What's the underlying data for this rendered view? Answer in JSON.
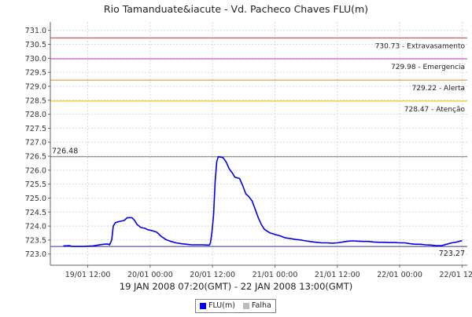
{
  "chart_data": {
    "type": "line",
    "title": "Rio Tamanduate&iacute - Vd. Pacheco Chaves FLU(m)",
    "xlabel": "19 JAN 2008 07:20(GMT) - 22 JAN 2008 13:00(GMT)",
    "ylabel": "",
    "x_unit": "hours since 19/01 00:00 GMT",
    "xlim": [
      4.8,
      85.0
    ],
    "ylim": [
      722.6,
      731.3
    ],
    "grid": true,
    "y_ticks": [
      "723.0",
      "723.5",
      "724.0",
      "724.5",
      "725.0",
      "725.5",
      "726.0",
      "726.5",
      "727.0",
      "727.5",
      "728.0",
      "728.5",
      "729.0",
      "729.5",
      "730.0",
      "730.5",
      "731.0"
    ],
    "x_ticks": [
      {
        "x": 12,
        "label": "19/01 12:00"
      },
      {
        "x": 24,
        "label": "20/01 00:00"
      },
      {
        "x": 36,
        "label": "20/01 12:00"
      },
      {
        "x": 48,
        "label": "21/01 00:00"
      },
      {
        "x": 60,
        "label": "21/01 12:00"
      },
      {
        "x": 72,
        "label": "22/01 00:00"
      },
      {
        "x": 84,
        "label": "22/01 12:00"
      }
    ],
    "thresholds": [
      {
        "value": 730.73,
        "label": "730.73 - Extravasamento",
        "color": "#cc3333"
      },
      {
        "value": 729.98,
        "label": "729.98 - Emergencia",
        "color": "#cc33cc"
      },
      {
        "value": 729.22,
        "label": "729.22 - Alerta",
        "color": "#e08a2a"
      },
      {
        "value": 728.47,
        "label": "728.47 - Atenção",
        "color": "#e6c200"
      }
    ],
    "max_marker": {
      "value": 726.48,
      "label": "726.48",
      "color": "#777777"
    },
    "min_marker": {
      "value": 723.27,
      "label": "723.27",
      "color": "#333399"
    },
    "series": [
      {
        "name": "FLU(m)",
        "color": "#0000ee",
        "points": [
          [
            7.3,
            723.29
          ],
          [
            8.5,
            723.3
          ],
          [
            9.0,
            723.27
          ],
          [
            11.0,
            723.27
          ],
          [
            12.0,
            723.28
          ],
          [
            13.0,
            723.29
          ],
          [
            14.0,
            723.32
          ],
          [
            15.0,
            723.35
          ],
          [
            15.8,
            723.36
          ],
          [
            16.2,
            723.33
          ],
          [
            16.6,
            723.5
          ],
          [
            16.9,
            724.0
          ],
          [
            17.3,
            724.12
          ],
          [
            18.0,
            724.16
          ],
          [
            19.0,
            724.2
          ],
          [
            19.6,
            724.3
          ],
          [
            20.5,
            724.3
          ],
          [
            21.0,
            724.2
          ],
          [
            21.5,
            724.05
          ],
          [
            22.2,
            723.95
          ],
          [
            23.0,
            723.92
          ],
          [
            23.5,
            723.87
          ],
          [
            24.5,
            723.83
          ],
          [
            25.3,
            723.78
          ],
          [
            26.0,
            723.65
          ],
          [
            27.0,
            723.52
          ],
          [
            28.0,
            723.45
          ],
          [
            29.0,
            723.4
          ],
          [
            30.0,
            723.37
          ],
          [
            31.0,
            723.35
          ],
          [
            32.0,
            723.33
          ],
          [
            33.0,
            723.33
          ],
          [
            34.0,
            723.33
          ],
          [
            35.0,
            723.32
          ],
          [
            35.4,
            723.32
          ],
          [
            35.6,
            723.4
          ],
          [
            35.9,
            723.8
          ],
          [
            36.2,
            724.4
          ],
          [
            36.5,
            725.6
          ],
          [
            36.8,
            726.3
          ],
          [
            37.1,
            726.48
          ],
          [
            38.0,
            726.45
          ],
          [
            38.6,
            726.3
          ],
          [
            39.2,
            726.05
          ],
          [
            39.8,
            725.9
          ],
          [
            40.3,
            725.75
          ],
          [
            41.2,
            725.7
          ],
          [
            41.8,
            725.45
          ],
          [
            42.4,
            725.15
          ],
          [
            43.0,
            725.05
          ],
          [
            43.6,
            724.9
          ],
          [
            44.2,
            724.6
          ],
          [
            44.8,
            724.3
          ],
          [
            45.4,
            724.05
          ],
          [
            46.0,
            723.88
          ],
          [
            47.0,
            723.76
          ],
          [
            48.0,
            723.7
          ],
          [
            49.0,
            723.65
          ],
          [
            50.0,
            723.58
          ],
          [
            51.0,
            723.55
          ],
          [
            52.0,
            723.52
          ],
          [
            53.0,
            723.5
          ],
          [
            54.0,
            723.47
          ],
          [
            55.0,
            723.44
          ],
          [
            56.0,
            723.42
          ],
          [
            57.0,
            723.4
          ],
          [
            58.0,
            723.4
          ],
          [
            59.0,
            723.39
          ],
          [
            60.0,
            723.4
          ],
          [
            61.0,
            723.43
          ],
          [
            62.0,
            723.46
          ],
          [
            63.0,
            723.47
          ],
          [
            64.0,
            723.46
          ],
          [
            65.0,
            723.45
          ],
          [
            66.0,
            723.45
          ],
          [
            67.0,
            723.43
          ],
          [
            68.0,
            723.42
          ],
          [
            69.0,
            723.42
          ],
          [
            70.0,
            723.41
          ],
          [
            71.0,
            723.41
          ],
          [
            72.0,
            723.4
          ],
          [
            73.0,
            723.4
          ],
          [
            74.0,
            723.37
          ],
          [
            75.0,
            723.35
          ],
          [
            76.0,
            723.35
          ],
          [
            77.0,
            723.33
          ],
          [
            78.0,
            723.32
          ],
          [
            79.0,
            723.3
          ],
          [
            80.0,
            723.3
          ],
          [
            81.0,
            723.35
          ],
          [
            82.0,
            723.4
          ],
          [
            83.0,
            723.43
          ],
          [
            84.0,
            723.48
          ]
        ]
      }
    ],
    "legend": {
      "placement": "bottom-center",
      "items": [
        {
          "label": "FLU(m)",
          "color": "#0000ee"
        },
        {
          "label": "Falha",
          "color": "#bbbbbb"
        }
      ]
    }
  }
}
